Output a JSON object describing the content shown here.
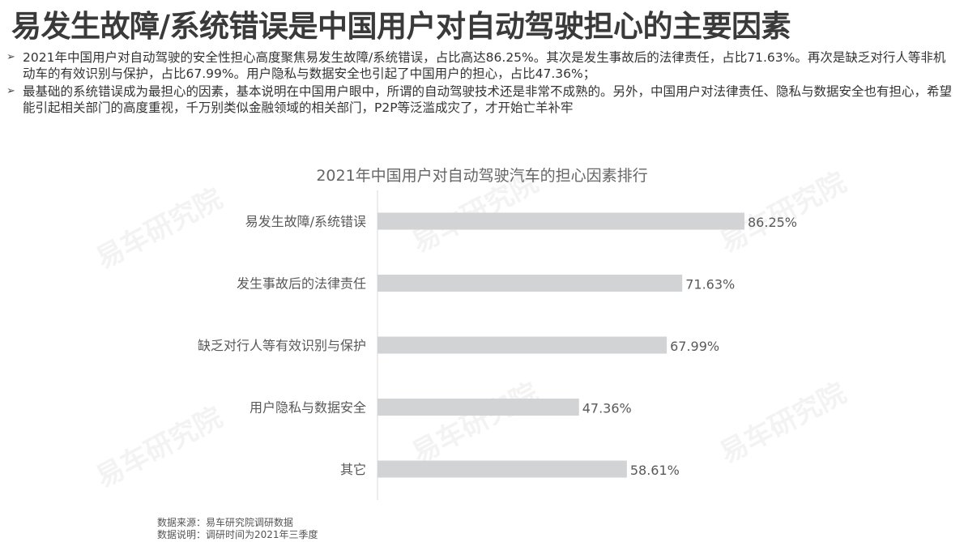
{
  "title": "易发生故障/系统错误是中国用户对自动驾驶担心的主要因素",
  "bullets": [
    "2021年中国用户对自动驾驶的安全性担心高度聚焦易发生故障/系统错误，占比高达86.25%。其次是发生事故后的法律责任，占比71.63%。再次是缺乏对行人等非机动车的有效识别与保护，占比67.99%。用户隐私与数据安全也引起了中国用户的担心，占比47.36%；",
    "最基础的系统错误成为最担心的因素，基本说明在中国用户眼中，所谓的自动驾驶技术还是非常不成熟的。另外，中国用户对法律责任、隐私与数据安全也有担心，希望能引起相关部门的高度重视，千万别类似金融领域的相关部门，P2P等泛滥成灾了，才开始亡羊补牢"
  ],
  "bullet_marker": "➢",
  "watermark": "易车研究院",
  "notes": {
    "source": "数据来源：易车研究院调研数据",
    "description": "数据说明：调研时间为2021年三季度"
  },
  "chart_data": {
    "type": "bar",
    "orientation": "horizontal",
    "title": "2021年中国用户对自动驾驶汽车的担心因素排行",
    "categories": [
      "易发生故障/系统错误",
      "发生事故后的法律责任",
      "缺乏对行人等有效识别与保护",
      "用户隐私与数据安全",
      "其它"
    ],
    "values": [
      86.25,
      71.63,
      67.99,
      47.36,
      58.61
    ],
    "labels": [
      "86.25%",
      "71.63%",
      "67.99%",
      "47.36%",
      "58.61%"
    ],
    "unit": "%",
    "bar_color": "#d1d3d5",
    "grid": false
  }
}
